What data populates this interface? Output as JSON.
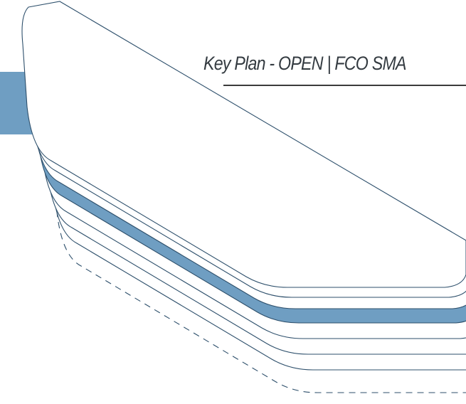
{
  "title": "Key Plan - OPEN | FCO SMA",
  "colors": {
    "highlight_fill": "#6f9ec2",
    "outline": "#2d4f6b",
    "rule": "#3b3b3b",
    "text": "#333a40"
  },
  "floors": {
    "visible_count": 6,
    "highlighted_floor_from_top": 3,
    "dashed_outline": true
  }
}
